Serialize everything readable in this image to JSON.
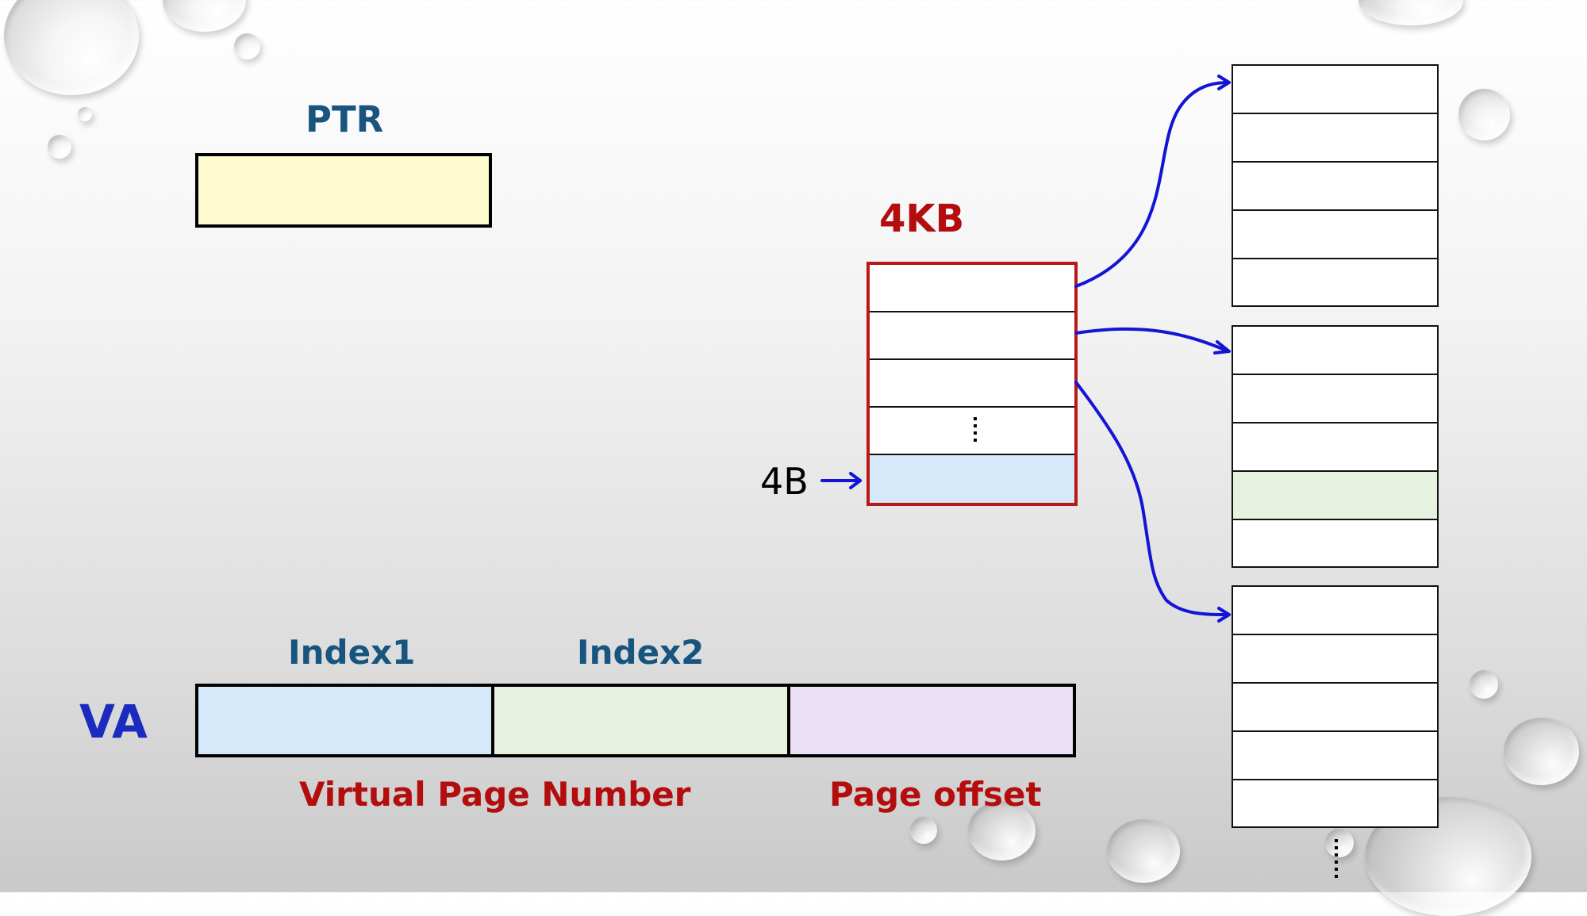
{
  "labels": {
    "ptr": "PTR",
    "size_4kb": "4KB",
    "entry_4b": "4B",
    "index1": "Index1",
    "index2": "Index2",
    "va": "VA",
    "vpn": "Virtual Page Number",
    "page_offset": "Page offset"
  },
  "colors": {
    "blue_label": "#17557f",
    "va_label": "#1c2bbf",
    "red_label": "#b30d0d",
    "arrow": "#1414d6",
    "ptr_fill": "#fefccf",
    "index1_fill": "#d6e9fa",
    "index2_fill": "#e6f2de",
    "offset_fill": "#ebe0f5",
    "selected_pte_fill": "#d6e9fa",
    "selected_page_row_fill": "#e6f2de",
    "outer_table_border": "#b81818"
  },
  "icons": [
    "water-droplet-decoration",
    "arrow-icon",
    "vertical-ellipsis-icon"
  ]
}
